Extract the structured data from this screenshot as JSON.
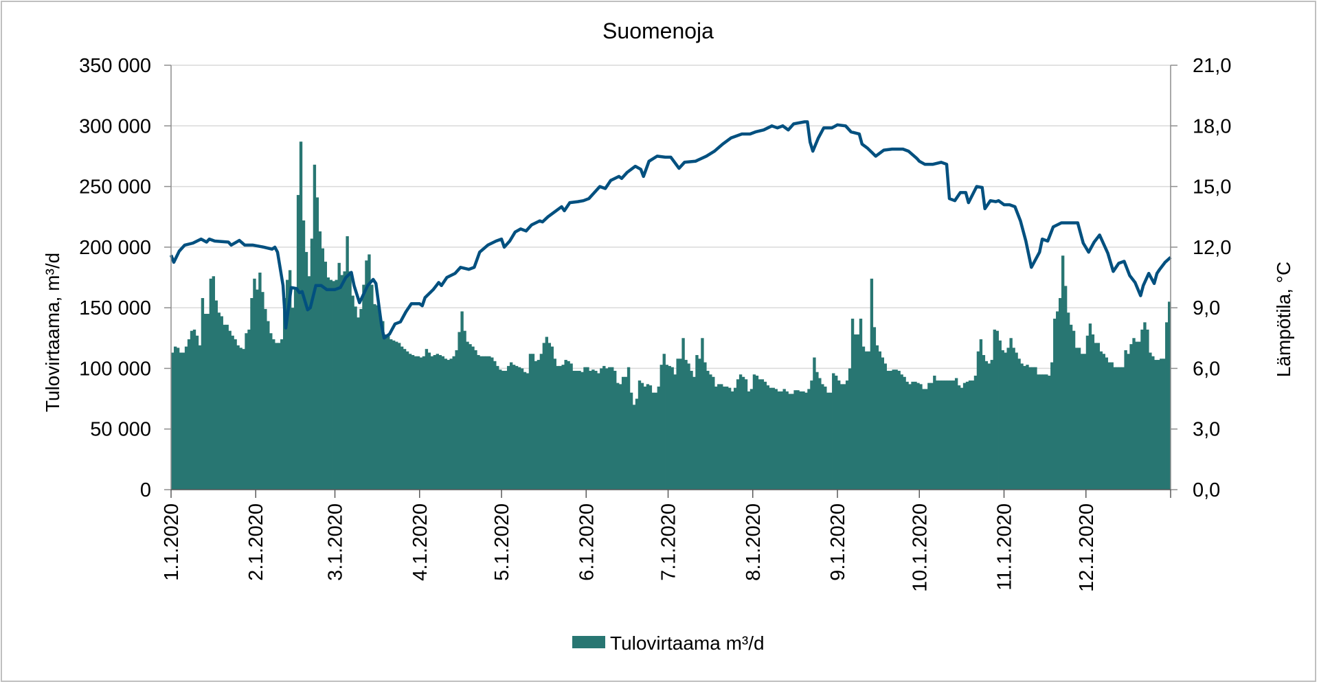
{
  "chart_data": {
    "type": "bar+line",
    "title": "Suomenoja",
    "xlabel": "",
    "ylabel": "Tulovirtaama, m³/d",
    "y2label": "Lämpötila, °C",
    "ylim": [
      0,
      350000
    ],
    "y2lim": [
      0,
      21
    ],
    "grid": true,
    "legend_position": "bottom",
    "legend": [
      "Tulovirtaama m³/d"
    ],
    "yticks": [
      "0",
      "50 000",
      "100 000",
      "150 000",
      "200 000",
      "250 000",
      "300 000",
      "350 000"
    ],
    "y2ticks": [
      "0,0",
      "3,0",
      "6,0",
      "9,0",
      "12,0",
      "15,0",
      "18,0",
      "21,0"
    ],
    "categories": [
      "1.1.2020",
      "2.1.2020",
      "3.1.2020",
      "4.1.2020",
      "5.1.2020",
      "6.1.2020",
      "7.1.2020",
      "8.1.2020",
      "9.1.2020",
      "10.1.2020",
      "11.1.2020",
      "12.1.2020"
    ],
    "month_start_day": [
      0,
      31,
      60,
      91,
      121,
      152,
      182,
      213,
      244,
      274,
      305,
      335
    ],
    "days_total": 366,
    "colors": {
      "bars": "#287672",
      "line": "#02507f",
      "grid": "#d9d9d9"
    },
    "series": [
      {
        "name": "Tulovirtaama m³/d",
        "kind": "bar",
        "unit_multiplier": 1000,
        "daily_by_month": [
          [
            113,
            118,
            117,
            113,
            113,
            118,
            124,
            131,
            132,
            127,
            119,
            158,
            145,
            145,
            174,
            176,
            156,
            146,
            143,
            136,
            136,
            131,
            127,
            124,
            119,
            117,
            116,
            129,
            132,
            158,
            174
          ],
          [
            165,
            179,
            163,
            149,
            139,
            129,
            124,
            121,
            121,
            124,
            158,
            173,
            181,
            150,
            165,
            243,
            287,
            222,
            196,
            176,
            207,
            268,
            241,
            213,
            199,
            188,
            175,
            173,
            172
          ],
          [
            173,
            187,
            177,
            180,
            209,
            180,
            160,
            151,
            142,
            149,
            169,
            189,
            194,
            169,
            153,
            152,
            142,
            139,
            128,
            127,
            124,
            123,
            122,
            121,
            118,
            116,
            114,
            112,
            111,
            110,
            110
          ],
          [
            109,
            110,
            116,
            113,
            110,
            111,
            112,
            111,
            110,
            108,
            107,
            108,
            110,
            115,
            130,
            147,
            131,
            122,
            120,
            118,
            115,
            111,
            110,
            110,
            110,
            110,
            109,
            106,
            102,
            99
          ],
          [
            98,
            98,
            102,
            105,
            103,
            102,
            101,
            100,
            97,
            96,
            112,
            112,
            106,
            107,
            112,
            121,
            126,
            121,
            118,
            108,
            102,
            102,
            103,
            107,
            106,
            104,
            98,
            98,
            98,
            97,
            101
          ],
          [
            101,
            98,
            99,
            98,
            96,
            100,
            102,
            100,
            101,
            101,
            98,
            88,
            87,
            93,
            93,
            101,
            80,
            70,
            75,
            90,
            88,
            85,
            87,
            86,
            80,
            80,
            85,
            103,
            112,
            103
          ],
          [
            102,
            101,
            95,
            108,
            108,
            125,
            107,
            104,
            98,
            93,
            111,
            108,
            125,
            105,
            98,
            95,
            93,
            85,
            87,
            87,
            85,
            85,
            84,
            81,
            84,
            91,
            95,
            93,
            91,
            81,
            83
          ],
          [
            95,
            94,
            91,
            91,
            89,
            86,
            84,
            84,
            83,
            81,
            81,
            83,
            81,
            79,
            79,
            82,
            82,
            81,
            81,
            80,
            83,
            90,
            109,
            97,
            92,
            87,
            85,
            80,
            80,
            96,
            94
          ],
          [
            90,
            87,
            87,
            90,
            100,
            141,
            128,
            128,
            141,
            118,
            114,
            114,
            174,
            134,
            119,
            114,
            109,
            104,
            98,
            98,
            99,
            99,
            98,
            95,
            93,
            89,
            87,
            89,
            89,
            88
          ],
          [
            87,
            83,
            83,
            88,
            88,
            94,
            90,
            90,
            90,
            90,
            90,
            90,
            90,
            92,
            86,
            84,
            88,
            89,
            90,
            90,
            94,
            114,
            124,
            111,
            106,
            104,
            107,
            132,
            131,
            123,
            115
          ],
          [
            113,
            117,
            125,
            117,
            113,
            108,
            104,
            102,
            103,
            101,
            101,
            101,
            95,
            95,
            95,
            95,
            94,
            105,
            141,
            147,
            158,
            193,
            168,
            146,
            136,
            131,
            117,
            117,
            112,
            112
          ],
          [
            127,
            137,
            128,
            121,
            121,
            114,
            112,
            109,
            105,
            105,
            101,
            101,
            101,
            101,
            115,
            112,
            120,
            125,
            122,
            122,
            132,
            138,
            132,
            113,
            110,
            107,
            107,
            108,
            108,
            138,
            155
          ]
        ]
      },
      {
        "name": "Lämpötila, °C",
        "kind": "line",
        "axis": "right",
        "points_day_value": [
          [
            0,
            11.6
          ],
          [
            1,
            11.25
          ],
          [
            3,
            11.8
          ],
          [
            5,
            12.1
          ],
          [
            8,
            12.2
          ],
          [
            11,
            12.4
          ],
          [
            13,
            12.25
          ],
          [
            14,
            12.4
          ],
          [
            16,
            12.3
          ],
          [
            21,
            12.25
          ],
          [
            22,
            12.1
          ],
          [
            25,
            12.33
          ],
          [
            27,
            12.1
          ],
          [
            30,
            12.1
          ],
          [
            34,
            12.0
          ],
          [
            37,
            11.9
          ],
          [
            38,
            12.0
          ],
          [
            39,
            11.75
          ],
          [
            41,
            10.1
          ],
          [
            42,
            8.0
          ],
          [
            44,
            10.0
          ],
          [
            46,
            9.95
          ],
          [
            47,
            9.75
          ],
          [
            48,
            9.8
          ],
          [
            50,
            8.9
          ],
          [
            51,
            9.0
          ],
          [
            53,
            10.1
          ],
          [
            55,
            10.1
          ],
          [
            57,
            9.9
          ],
          [
            60,
            9.9
          ],
          [
            62,
            10.0
          ],
          [
            64,
            10.5
          ],
          [
            66,
            10.75
          ],
          [
            67,
            10.1
          ],
          [
            69,
            9.25
          ],
          [
            72,
            10.1
          ],
          [
            74,
            10.4
          ],
          [
            75,
            10.2
          ],
          [
            77,
            8.2
          ],
          [
            78,
            7.5
          ],
          [
            80,
            7.7
          ],
          [
            82,
            8.2
          ],
          [
            84,
            8.3
          ],
          [
            86,
            8.8
          ],
          [
            88,
            9.2
          ],
          [
            91,
            9.2
          ],
          [
            92,
            9.1
          ],
          [
            93,
            9.5
          ],
          [
            96,
            9.9
          ],
          [
            98,
            10.25
          ],
          [
            99,
            10.1
          ],
          [
            101,
            10.5
          ],
          [
            104,
            10.7
          ],
          [
            106,
            11.0
          ],
          [
            109,
            10.9
          ],
          [
            111,
            11.0
          ],
          [
            113,
            11.75
          ],
          [
            116,
            12.1
          ],
          [
            119,
            12.3
          ],
          [
            121,
            12.4
          ],
          [
            122,
            12.0
          ],
          [
            124,
            12.3
          ],
          [
            126,
            12.75
          ],
          [
            128,
            12.9
          ],
          [
            130,
            12.8
          ],
          [
            132,
            13.1
          ],
          [
            135,
            13.3
          ],
          [
            136,
            13.25
          ],
          [
            138,
            13.5
          ],
          [
            141,
            13.8
          ],
          [
            143,
            14.0
          ],
          [
            144,
            13.8
          ],
          [
            146,
            14.2
          ],
          [
            149,
            14.25
          ],
          [
            151,
            14.3
          ],
          [
            153,
            14.4
          ],
          [
            155,
            14.7
          ],
          [
            157,
            15.0
          ],
          [
            159,
            14.9
          ],
          [
            161,
            15.3
          ],
          [
            164,
            15.5
          ],
          [
            165,
            15.4
          ],
          [
            167,
            15.7
          ],
          [
            170,
            16.0
          ],
          [
            172,
            15.85
          ],
          [
            173,
            15.5
          ],
          [
            175,
            16.25
          ],
          [
            178,
            16.5
          ],
          [
            181,
            16.45
          ],
          [
            183,
            16.45
          ],
          [
            186,
            15.9
          ],
          [
            188,
            16.2
          ],
          [
            192,
            16.25
          ],
          [
            196,
            16.5
          ],
          [
            199,
            16.75
          ],
          [
            202,
            17.1
          ],
          [
            205,
            17.4
          ],
          [
            209,
            17.6
          ],
          [
            212,
            17.6
          ],
          [
            214,
            17.7
          ],
          [
            217,
            17.8
          ],
          [
            220,
            18.0
          ],
          [
            222,
            17.9
          ],
          [
            224,
            18.0
          ],
          [
            226,
            17.8
          ],
          [
            228,
            18.1
          ],
          [
            232,
            18.2
          ],
          [
            233,
            18.2
          ],
          [
            234,
            17.2
          ],
          [
            235,
            16.75
          ],
          [
            237,
            17.4
          ],
          [
            239,
            17.9
          ],
          [
            242,
            17.9
          ],
          [
            244,
            18.05
          ],
          [
            247,
            18.0
          ],
          [
            249,
            17.7
          ],
          [
            252,
            17.6
          ],
          [
            253,
            17.1
          ],
          [
            255,
            16.9
          ],
          [
            258,
            16.5
          ],
          [
            261,
            16.8
          ],
          [
            264,
            16.85
          ],
          [
            268,
            16.85
          ],
          [
            270,
            16.75
          ],
          [
            273,
            16.4
          ],
          [
            274,
            16.25
          ],
          [
            276,
            16.1
          ],
          [
            279,
            16.1
          ],
          [
            282,
            16.2
          ],
          [
            284,
            16.1
          ],
          [
            285,
            14.4
          ],
          [
            287,
            14.3
          ],
          [
            289,
            14.7
          ],
          [
            291,
            14.7
          ],
          [
            292,
            14.2
          ],
          [
            295,
            15.0
          ],
          [
            297,
            14.95
          ],
          [
            298,
            13.9
          ],
          [
            300,
            14.3
          ],
          [
            302,
            14.25
          ],
          [
            303,
            14.3
          ],
          [
            305,
            14.1
          ],
          [
            307,
            14.1
          ],
          [
            309,
            14.0
          ],
          [
            311,
            13.3
          ],
          [
            313,
            12.3
          ],
          [
            315,
            11.0
          ],
          [
            318,
            11.75
          ],
          [
            319,
            12.4
          ],
          [
            321,
            12.3
          ],
          [
            323,
            13.0
          ],
          [
            326,
            13.2
          ],
          [
            329,
            13.2
          ],
          [
            332,
            13.2
          ],
          [
            334,
            12.2
          ],
          [
            336,
            11.75
          ],
          [
            338,
            12.25
          ],
          [
            340,
            12.6
          ],
          [
            343,
            11.7
          ],
          [
            345,
            10.8
          ],
          [
            347,
            11.2
          ],
          [
            349,
            11.3
          ],
          [
            351,
            10.6
          ],
          [
            353,
            10.25
          ],
          [
            355,
            9.6
          ],
          [
            356,
            10.1
          ],
          [
            358,
            10.7
          ],
          [
            360,
            10.2
          ],
          [
            361,
            10.7
          ],
          [
            362,
            10.9
          ],
          [
            364,
            11.25
          ],
          [
            366,
            11.5
          ]
        ]
      }
    ]
  }
}
